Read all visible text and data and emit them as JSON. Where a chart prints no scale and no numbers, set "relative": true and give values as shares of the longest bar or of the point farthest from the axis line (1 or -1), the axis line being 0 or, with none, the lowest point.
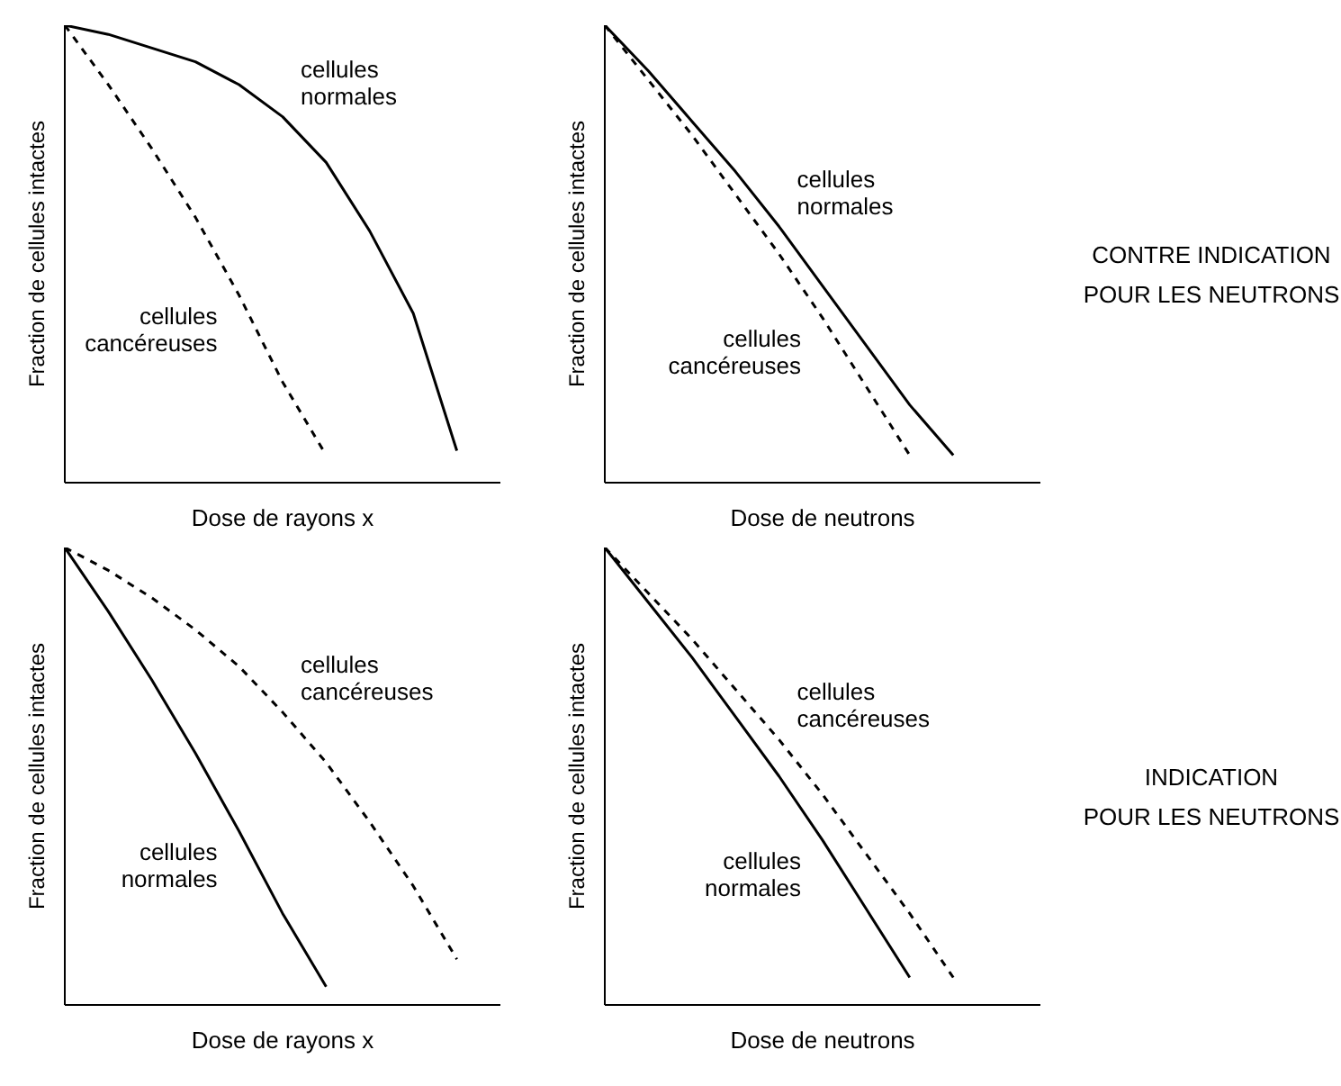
{
  "chart_data": [
    {
      "type": "line",
      "relative": true,
      "xlabel": "Dose de rayons x",
      "ylabel": "Fraction de cellules intactes",
      "categories": [
        null,
        null,
        null,
        null,
        null,
        null,
        null,
        null,
        null,
        null,
        null
      ],
      "legend": false,
      "grid": false,
      "series": [
        {
          "name": "cellules normales",
          "color": "#000000",
          "line_style": "solid",
          "values": [
            1,
            0.98,
            0.95,
            0.92,
            0.87,
            0.8,
            0.7,
            0.55,
            0.37,
            0.07,
            null
          ]
        },
        {
          "name": "cellules cancéreuses",
          "color": "#000000",
          "line_style": "dashed",
          "values": [
            1,
            0.87,
            0.73,
            0.58,
            0.41,
            0.22,
            0.06,
            null,
            null,
            null,
            null
          ]
        }
      ]
    },
    {
      "type": "line",
      "relative": true,
      "xlabel": "Dose de neutrons",
      "ylabel": "Fraction de cellules intactes",
      "categories": [
        null,
        null,
        null,
        null,
        null,
        null,
        null,
        null,
        null,
        null,
        null
      ],
      "legend": false,
      "grid": false,
      "annotations": [
        "CONTRE INDICATION",
        "POUR LES NEUTRONS"
      ],
      "series": [
        {
          "name": "cellules normales",
          "color": "#000000",
          "line_style": "solid",
          "values": [
            1,
            0.9,
            0.79,
            0.68,
            0.56,
            0.43,
            0.3,
            0.17,
            0.06,
            null,
            null
          ]
        },
        {
          "name": "cellules cancéreuses",
          "color": "#000000",
          "line_style": "dashed",
          "values": [
            1,
            0.88,
            0.76,
            0.63,
            0.5,
            0.36,
            0.21,
            0.06,
            null,
            null,
            null
          ]
        }
      ]
    },
    {
      "type": "line",
      "relative": true,
      "xlabel": "Dose de rayons x",
      "ylabel": "Fraction de cellules intactes",
      "categories": [
        null,
        null,
        null,
        null,
        null,
        null,
        null,
        null,
        null,
        null,
        null
      ],
      "legend": false,
      "grid": false,
      "series": [
        {
          "name": "cellules normales",
          "color": "#000000",
          "line_style": "solid",
          "values": [
            1,
            0.86,
            0.71,
            0.55,
            0.38,
            0.2,
            0.04,
            null,
            null,
            null,
            null
          ]
        },
        {
          "name": "cellules cancéreuses",
          "color": "#000000",
          "line_style": "dashed",
          "values": [
            1,
            0.95,
            0.89,
            0.82,
            0.74,
            0.64,
            0.53,
            0.4,
            0.26,
            0.1,
            null
          ]
        }
      ]
    },
    {
      "type": "line",
      "relative": true,
      "xlabel": "Dose de neutrons",
      "ylabel": "Fraction de cellules intactes",
      "categories": [
        null,
        null,
        null,
        null,
        null,
        null,
        null,
        null,
        null,
        null,
        null
      ],
      "legend": false,
      "grid": false,
      "annotations": [
        "INDICATION",
        "POUR LES NEUTRONS"
      ],
      "series": [
        {
          "name": "cellules normales",
          "color": "#000000",
          "line_style": "solid",
          "values": [
            1,
            0.88,
            0.76,
            0.63,
            0.5,
            0.36,
            0.21,
            0.06,
            null,
            null,
            null
          ]
        },
        {
          "name": "cellules cancéreuses",
          "color": "#000000",
          "line_style": "dashed",
          "values": [
            1,
            0.9,
            0.8,
            0.69,
            0.58,
            0.46,
            0.33,
            0.2,
            0.06,
            null,
            null
          ]
        }
      ]
    }
  ]
}
